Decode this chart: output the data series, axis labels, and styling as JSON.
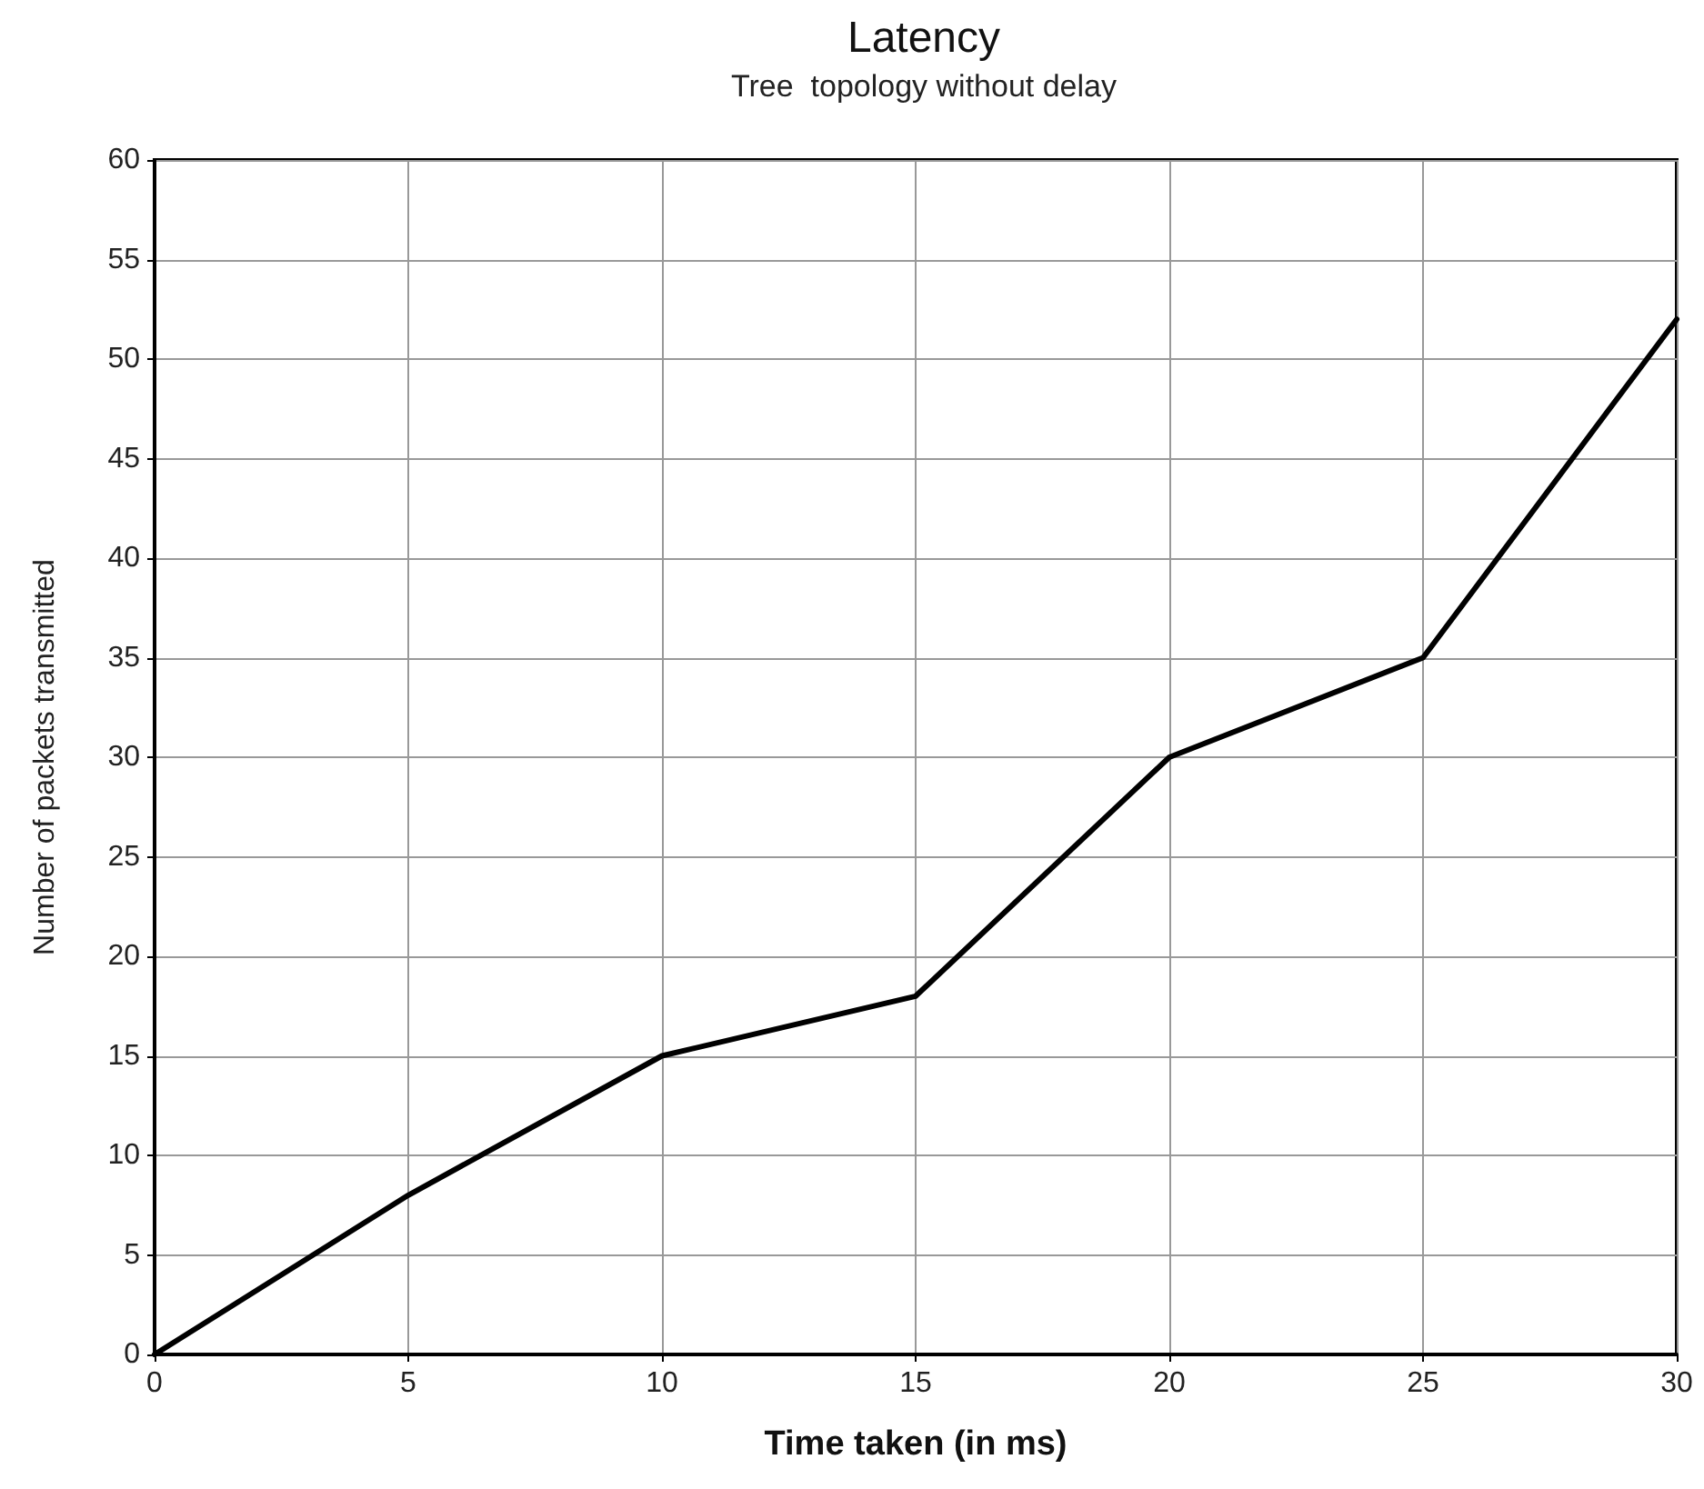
{
  "chart_data": {
    "type": "line",
    "title": "Latency",
    "subtitle": "Tree  topology without delay",
    "xlabel": "Time taken (in ms)",
    "ylabel": "Number of packets transmitted",
    "x": [
      0,
      5,
      10,
      15,
      20,
      25,
      30
    ],
    "series": [
      {
        "color": "#000000",
        "values": [
          0,
          8,
          15,
          18,
          30,
          35,
          52
        ]
      }
    ],
    "xlim": [
      0,
      30
    ],
    "xticks": [
      0,
      5,
      10,
      15,
      20,
      25,
      30
    ],
    "ylim": [
      0,
      60
    ],
    "yticks": [
      0,
      5,
      10,
      15,
      20,
      25,
      30,
      35,
      40,
      45,
      50,
      55,
      60
    ],
    "grid": true,
    "marker": "none",
    "line_style": "solid"
  }
}
